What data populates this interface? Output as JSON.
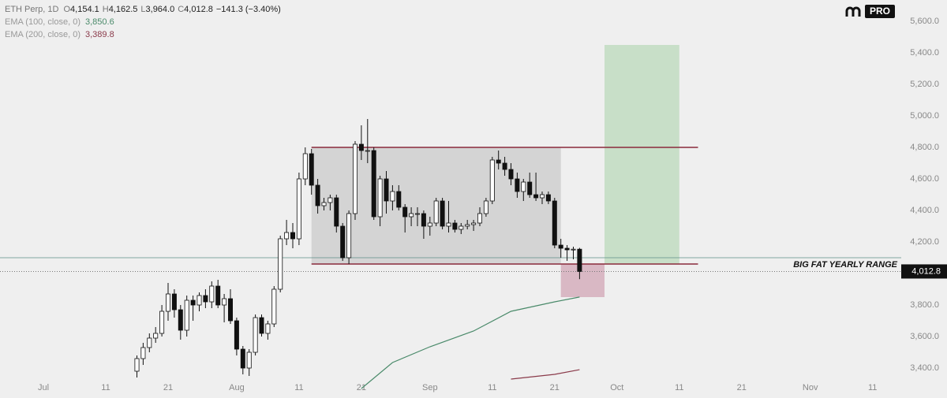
{
  "header": {
    "symbol": "ETH Perp, 1D",
    "ohlc": [
      {
        "label": "O",
        "value": "4,154.1"
      },
      {
        "label": "H",
        "value": "4,162.5"
      },
      {
        "label": "L",
        "value": "3,964.0"
      },
      {
        "label": "C",
        "value": "4,012.8"
      }
    ],
    "change": "−141.3 (−3.40%)",
    "badge": "PRO"
  },
  "chart_data": {
    "type": "candlestick",
    "x": [
      "07-16",
      "07-17",
      "07-18",
      "07-19",
      "07-20",
      "07-21",
      "07-22",
      "07-23",
      "07-24",
      "07-25",
      "07-26",
      "07-27",
      "07-28",
      "07-29",
      "07-30",
      "07-31",
      "08-01",
      "08-02",
      "08-03",
      "08-04",
      "08-05",
      "08-06",
      "08-07",
      "08-08",
      "08-09",
      "08-10",
      "08-11",
      "08-12",
      "08-13",
      "08-14",
      "08-15",
      "08-16",
      "08-17",
      "08-18",
      "08-19",
      "08-20",
      "08-21",
      "08-22",
      "08-23",
      "08-24",
      "08-25",
      "08-26",
      "08-27",
      "08-28",
      "08-29",
      "08-30",
      "08-31",
      "09-01",
      "09-02",
      "09-03",
      "09-04",
      "09-05",
      "09-06",
      "09-07",
      "09-08",
      "09-09",
      "09-10",
      "09-11",
      "09-12",
      "09-13",
      "09-14",
      "09-15",
      "09-16",
      "09-17",
      "09-18",
      "09-19",
      "09-20",
      "09-21",
      "09-22",
      "09-23",
      "09-24",
      "09-25"
    ],
    "open": [
      3380,
      3460,
      3530,
      3590,
      3620,
      3760,
      3870,
      3770,
      3640,
      3830,
      3800,
      3860,
      3820,
      3920,
      3800,
      3840,
      3700,
      3520,
      3400,
      3500,
      3720,
      3620,
      3680,
      3900,
      4220,
      4260,
      4220,
      4600,
      4760,
      4560,
      4430,
      4450,
      4480,
      4300,
      4100,
      4380,
      4820,
      4780,
      4780,
      4360,
      4600,
      4460,
      4520,
      4420,
      4360,
      4380,
      4380,
      4300,
      4320,
      4460,
      4300,
      4320,
      4280,
      4300,
      4310,
      4320,
      4380,
      4460,
      4720,
      4700,
      4660,
      4600,
      4520,
      4580,
      4500,
      4480,
      4500,
      4460,
      4180,
      4160,
      4150,
      4154.1
    ],
    "high": [
      3480,
      3560,
      3620,
      3660,
      3800,
      3940,
      3900,
      3800,
      3860,
      3860,
      3880,
      3900,
      3950,
      3960,
      3870,
      3900,
      3720,
      3540,
      3520,
      3740,
      3740,
      3700,
      3920,
      4240,
      4340,
      4320,
      4640,
      4800,
      4790,
      4600,
      4480,
      4500,
      4500,
      4320,
      4400,
      4840,
      4940,
      4980,
      4800,
      4620,
      4650,
      4560,
      4560,
      4440,
      4420,
      4420,
      4400,
      4360,
      4480,
      4480,
      4460,
      4340,
      4320,
      4340,
      4340,
      4420,
      4480,
      4740,
      4780,
      4740,
      4700,
      4640,
      4600,
      4640,
      4640,
      4520,
      4520,
      4480,
      4220,
      4180,
      4170,
      4162.5
    ],
    "low": [
      3340,
      3420,
      3500,
      3560,
      3600,
      3700,
      3720,
      3580,
      3600,
      3700,
      3760,
      3780,
      3780,
      3780,
      3690,
      3680,
      3480,
      3360,
      3350,
      3480,
      3600,
      3580,
      3660,
      3880,
      4180,
      4160,
      4180,
      4560,
      4500,
      4380,
      4400,
      4400,
      4260,
      4080,
      4060,
      4340,
      4720,
      4700,
      4340,
      4300,
      4380,
      4400,
      4400,
      4260,
      4300,
      4300,
      4220,
      4240,
      4300,
      4280,
      4260,
      4260,
      4250,
      4280,
      4270,
      4300,
      4360,
      4440,
      4660,
      4620,
      4560,
      4480,
      4460,
      4480,
      4460,
      4440,
      4440,
      4160,
      4100,
      4080,
      4090,
      3964.0
    ],
    "close": [
      3460,
      3530,
      3590,
      3620,
      3760,
      3870,
      3770,
      3640,
      3830,
      3800,
      3860,
      3820,
      3920,
      3800,
      3840,
      3700,
      3520,
      3400,
      3500,
      3720,
      3620,
      3680,
      3900,
      4220,
      4260,
      4220,
      4600,
      4760,
      4560,
      4430,
      4450,
      4480,
      4300,
      4100,
      4380,
      4820,
      4780,
      4780,
      4360,
      4600,
      4460,
      4520,
      4420,
      4360,
      4380,
      4380,
      4300,
      4320,
      4460,
      4300,
      4320,
      4280,
      4300,
      4310,
      4320,
      4380,
      4460,
      4720,
      4700,
      4660,
      4600,
      4520,
      4580,
      4500,
      4480,
      4500,
      4460,
      4180,
      4160,
      4150,
      4154.1,
      4012.8
    ],
    "up_color": "#ffffff",
    "down_color": "#111111",
    "series": [
      {
        "name": "EMA (100, close, 0)",
        "color": "#4a8a6a",
        "x": [
          "08-21",
          "08-26",
          "09-01",
          "09-08",
          "09-14",
          "09-21",
          "09-25"
        ],
        "values": [
          3270,
          3435,
          3535,
          3635,
          3760,
          3820,
          3850.6
        ],
        "last_label": "3,850.6"
      },
      {
        "name": "EMA (200, close, 0)",
        "color": "#8a3a4a",
        "x": [
          "09-14",
          "09-21",
          "09-25"
        ],
        "values": [
          3330,
          3360,
          3389.8
        ],
        "last_label": "3,389.8"
      }
    ],
    "ylim": [
      3350,
      5650
    ],
    "yticks": [
      {
        "value": 3400,
        "label": "3,400.0"
      },
      {
        "value": 3600,
        "label": "3,600.0"
      },
      {
        "value": 3800,
        "label": "3,800.0"
      },
      {
        "value": 4000,
        "label": "4,000.0"
      },
      {
        "value": 4200,
        "label": "4,200.0"
      },
      {
        "value": 4400,
        "label": "4,400.0"
      },
      {
        "value": 4600,
        "label": "4,600.0"
      },
      {
        "value": 4800,
        "label": "4,800.0"
      },
      {
        "value": 5000,
        "label": "5,000.0"
      },
      {
        "value": 5200,
        "label": "5,200.0"
      },
      {
        "value": 5400,
        "label": "5,400.0"
      },
      {
        "value": 5600,
        "label": "5,600.0"
      }
    ],
    "xticks": [
      {
        "value": "07-01",
        "label": "Jul"
      },
      {
        "value": "07-11",
        "label": "11"
      },
      {
        "value": "07-21",
        "label": "21"
      },
      {
        "value": "08-01",
        "label": "Aug"
      },
      {
        "value": "08-11",
        "label": "11"
      },
      {
        "value": "08-21",
        "label": "21"
      },
      {
        "value": "09-01",
        "label": "Sep"
      },
      {
        "value": "09-11",
        "label": "11"
      },
      {
        "value": "09-21",
        "label": "21"
      },
      {
        "value": "10-01",
        "label": "Oct"
      },
      {
        "value": "10-11",
        "label": "11"
      },
      {
        "value": "10-21",
        "label": "21"
      },
      {
        "value": "11-01",
        "label": "Nov"
      },
      {
        "value": "11-11",
        "label": "11"
      }
    ],
    "range": {
      "high": 4800,
      "low": 4060,
      "from": "08-13",
      "to": "10-14",
      "box_to": "09-22",
      "label": "BIG FAT YEARLY RANGE"
    },
    "target_box": {
      "from": "09-29",
      "to": "10-11",
      "top": 5450,
      "bottom": 4060,
      "color": "#c8dfc8"
    },
    "stop_box": {
      "from": "09-22",
      "to": "09-29",
      "top": 4060,
      "bottom": 3850,
      "color": "#d9b8c4"
    },
    "level_line": {
      "value": 4100,
      "color": "#5e8f88"
    },
    "last_price": {
      "value": 4012.8,
      "label": "4,012.8"
    }
  }
}
